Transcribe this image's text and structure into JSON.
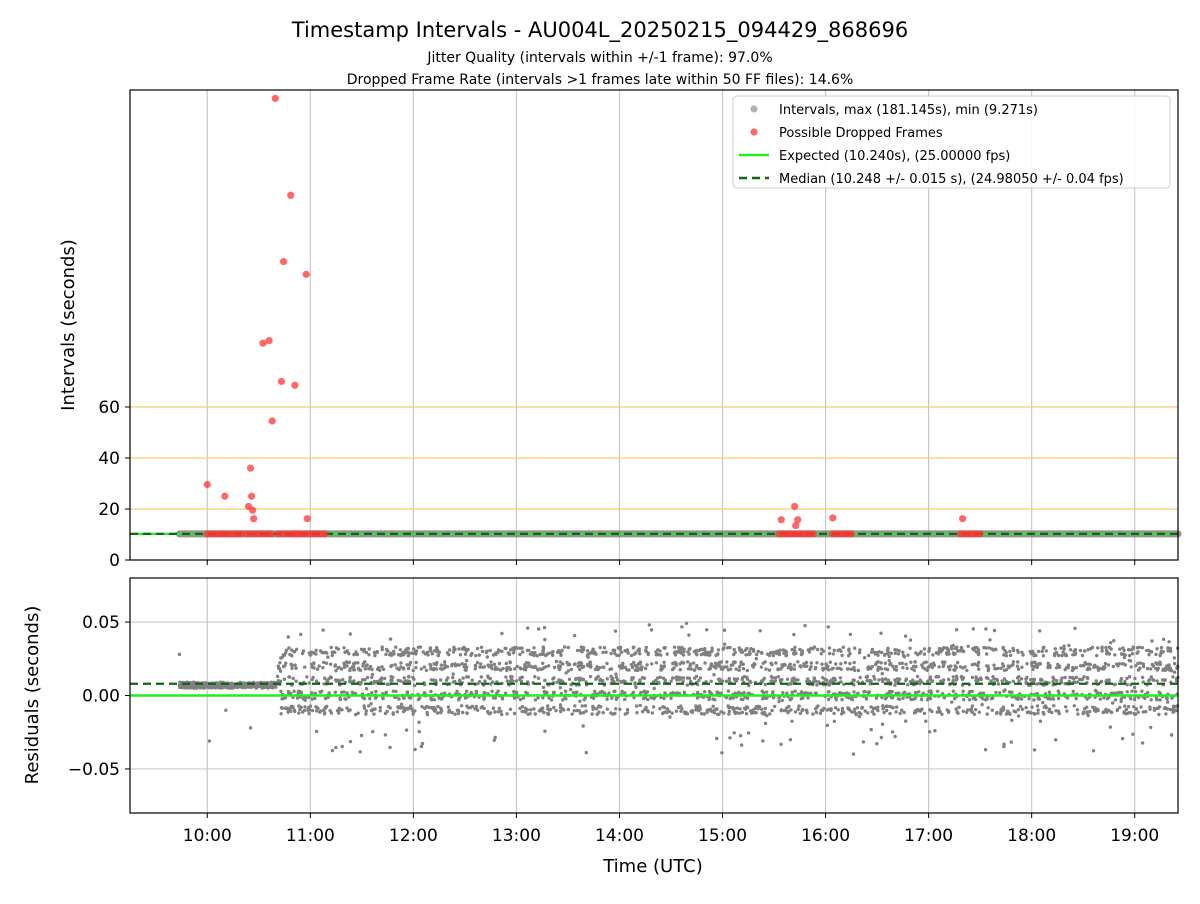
{
  "chart_data": {
    "type": "scatter",
    "title": "Timestamp Intervals - AU004L_20250215_094429_868696",
    "subtitles": [
      "Jitter Quality (intervals within +/-1 frame): 97.0%",
      "Dropped Frame Rate (intervals >1 frames late within 50 FF files): 14.6%"
    ],
    "xlabel": "Time (UTC)",
    "x_unit": "hours (UTC, decimal)",
    "xlim": [
      9.25,
      19.42
    ],
    "x_ticks": [
      {
        "value": 10,
        "label": "10:00"
      },
      {
        "value": 11,
        "label": "11:00"
      },
      {
        "value": 12,
        "label": "12:00"
      },
      {
        "value": 13,
        "label": "13:00"
      },
      {
        "value": 14,
        "label": "14:00"
      },
      {
        "value": 15,
        "label": "15:00"
      },
      {
        "value": 16,
        "label": "16:00"
      },
      {
        "value": 17,
        "label": "17:00"
      },
      {
        "value": 18,
        "label": "18:00"
      },
      {
        "value": 19,
        "label": "19:00"
      }
    ],
    "grid": true,
    "legend_position": "top-right",
    "colors": {
      "intervals": "#808080",
      "dropped": "#ff3333",
      "expected": "#22ee22",
      "median": "#116611",
      "threshold": "#ffcc66",
      "grid": "#c8c8c8"
    },
    "panels": [
      {
        "id": "intervals",
        "ylabel": "Intervals (seconds)",
        "ylim": [
          0,
          181.145
        ],
        "y_ticks": [
          0,
          20,
          40,
          60
        ],
        "threshold_lines": [
          20,
          40,
          60
        ],
        "expected": 10.24,
        "median": 10.248,
        "interval_band": {
          "x_start": 9.73,
          "x_end": 19.42,
          "value": 10.248
        },
        "dropped_points": [
          {
            "x": 10.0,
            "y": 29.6
          },
          {
            "x": 10.17,
            "y": 25.0
          },
          {
            "x": 10.4,
            "y": 21.0
          },
          {
            "x": 10.42,
            "y": 36.0
          },
          {
            "x": 10.43,
            "y": 25.0
          },
          {
            "x": 10.44,
            "y": 19.5
          },
          {
            "x": 10.45,
            "y": 16.2
          },
          {
            "x": 10.54,
            "y": 85.0
          },
          {
            "x": 10.6,
            "y": 86.0
          },
          {
            "x": 10.63,
            "y": 54.5
          },
          {
            "x": 10.66,
            "y": 181.0
          },
          {
            "x": 10.72,
            "y": 70.0
          },
          {
            "x": 10.74,
            "y": 117.0
          },
          {
            "x": 10.81,
            "y": 143.0
          },
          {
            "x": 10.85,
            "y": 68.5
          },
          {
            "x": 10.96,
            "y": 112.0
          },
          {
            "x": 10.97,
            "y": 16.2
          },
          {
            "x": 15.57,
            "y": 15.8
          },
          {
            "x": 15.7,
            "y": 21.0
          },
          {
            "x": 15.71,
            "y": 13.5
          },
          {
            "x": 15.73,
            "y": 15.8
          },
          {
            "x": 16.07,
            "y": 16.5
          },
          {
            "x": 17.33,
            "y": 16.2
          }
        ],
        "dropped_clusters": [
          {
            "x_start": 10.0,
            "x_end": 10.33,
            "y": 10.25
          },
          {
            "x_start": 10.38,
            "x_end": 10.62,
            "y": 10.25
          },
          {
            "x_start": 10.69,
            "x_end": 10.85,
            "y": 10.25
          },
          {
            "x_start": 10.87,
            "x_end": 11.14,
            "y": 10.25
          },
          {
            "x_start": 15.55,
            "x_end": 15.88,
            "y": 10.25
          },
          {
            "x_start": 16.07,
            "x_end": 16.25,
            "y": 10.25
          },
          {
            "x_start": 17.31,
            "x_end": 17.5,
            "y": 10.25
          }
        ]
      },
      {
        "id": "residuals",
        "ylabel": "Residuals (seconds)",
        "ylim": [
          -0.08,
          0.08
        ],
        "y_ticks": [
          {
            "value": 0.05,
            "label": "0.05"
          },
          {
            "value": 0.0,
            "label": "0.00"
          },
          {
            "value": -0.05,
            "label": "−0.05"
          }
        ],
        "expected": 0.0,
        "median": 0.008,
        "residual_series": {
          "x_start": 9.73,
          "x_end": 19.42,
          "n_points": 3300,
          "early_section_end": 10.68,
          "levels": [
            -0.01,
            0.0,
            0.01,
            0.02,
            0.03
          ],
          "range": [
            -0.04,
            0.05
          ],
          "isolated_points": [
            {
              "x": 9.73,
              "y": 0.028
            },
            {
              "x": 10.02,
              "y": -0.031
            },
            {
              "x": 10.18,
              "y": -0.01
            },
            {
              "x": 10.42,
              "y": -0.022
            }
          ]
        }
      }
    ],
    "legend": [
      {
        "kind": "dot",
        "color": "#808080",
        "label": "Intervals, max (181.145s), min (9.271s)"
      },
      {
        "kind": "dot",
        "color": "#ff3333",
        "label": "Possible Dropped Frames"
      },
      {
        "kind": "line",
        "color": "#22ee22",
        "label": "Expected (10.240s), (25.00000 fps)"
      },
      {
        "kind": "dashed",
        "color": "#116611",
        "label": "Median (10.248 +/- 0.015 s), (24.98050 +/- 0.04 fps)"
      }
    ]
  }
}
